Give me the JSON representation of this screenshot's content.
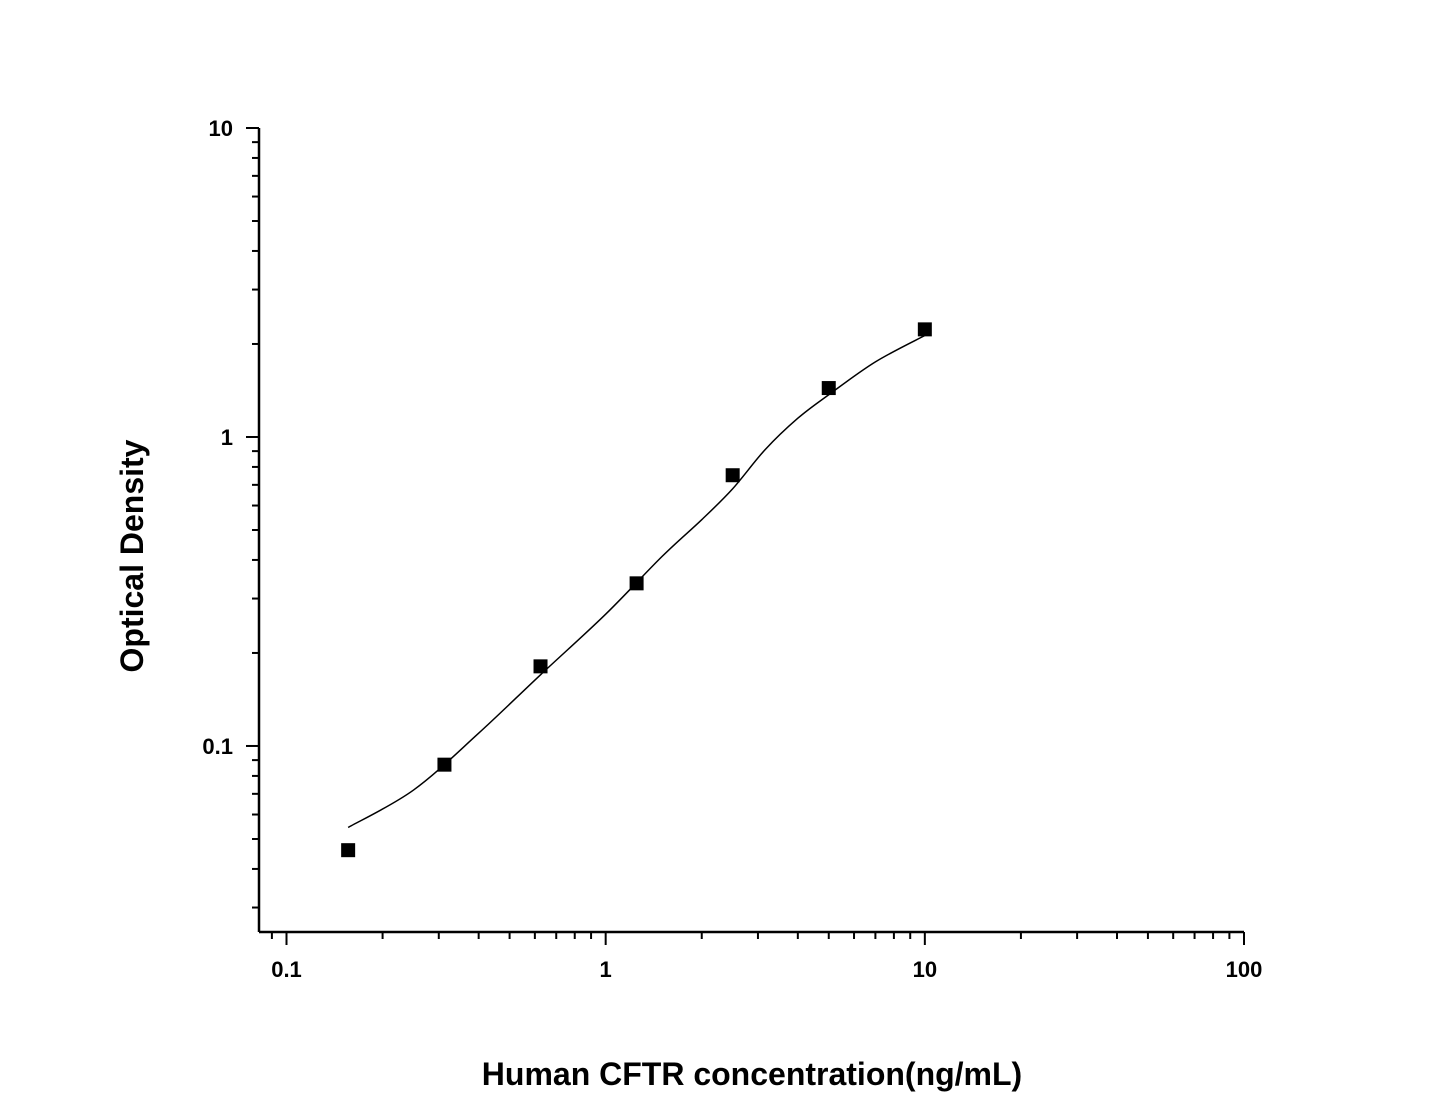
{
  "chart_data": {
    "type": "scatter",
    "title": "",
    "xlabel": "Human CFTR concentration(ng/mL)",
    "ylabel": "Optical Density",
    "xscale": "log",
    "yscale": "log",
    "xlim": [
      0.082,
      100
    ],
    "ylim": [
      0.025,
      10
    ],
    "xticks": [
      0.1,
      1,
      10,
      100
    ],
    "xtick_labels": [
      "0.1",
      "1",
      "10",
      "100"
    ],
    "yticks": [
      0.1,
      1,
      10
    ],
    "ytick_labels": [
      "0.1",
      "1",
      "10"
    ],
    "grid": false,
    "legend": "none",
    "series": [
      {
        "marker": "square",
        "color": "#000000",
        "x": [
          0.156,
          0.3125,
          0.625,
          1.25,
          2.5,
          5,
          10
        ],
        "y": [
          0.046,
          0.087,
          0.181,
          0.336,
          0.752,
          1.44,
          2.23
        ]
      }
    ],
    "fit_curve": {
      "color": "#000000",
      "x": [
        0.156,
        0.25,
        0.4,
        0.625,
        1,
        1.5,
        2,
        2.5,
        3.16,
        4,
        5,
        7,
        10
      ],
      "y": [
        0.0545,
        0.072,
        0.11,
        0.17,
        0.267,
        0.41,
        0.54,
        0.68,
        0.91,
        1.15,
        1.37,
        1.75,
        2.13
      ]
    }
  }
}
